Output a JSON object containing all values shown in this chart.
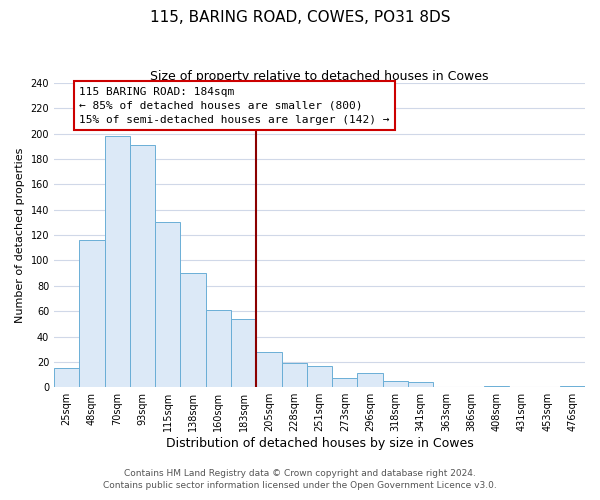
{
  "title": "115, BARING ROAD, COWES, PO31 8DS",
  "subtitle": "Size of property relative to detached houses in Cowes",
  "xlabel": "Distribution of detached houses by size in Cowes",
  "ylabel": "Number of detached properties",
  "bin_labels": [
    "25sqm",
    "48sqm",
    "70sqm",
    "93sqm",
    "115sqm",
    "138sqm",
    "160sqm",
    "183sqm",
    "205sqm",
    "228sqm",
    "251sqm",
    "273sqm",
    "296sqm",
    "318sqm",
    "341sqm",
    "363sqm",
    "386sqm",
    "408sqm",
    "431sqm",
    "453sqm",
    "476sqm"
  ],
  "bar_heights": [
    15,
    116,
    198,
    191,
    130,
    90,
    61,
    54,
    28,
    19,
    17,
    7,
    11,
    5,
    4,
    0,
    0,
    1,
    0,
    0,
    1
  ],
  "bar_color": "#dce9f7",
  "bar_edge_color": "#6aaed6",
  "property_line_color": "#8b0000",
  "annotation_line1": "115 BARING ROAD: 184sqm",
  "annotation_line2": "← 85% of detached houses are smaller (800)",
  "annotation_line3": "15% of semi-detached houses are larger (142) →",
  "annotation_box_color": "white",
  "annotation_box_edge_color": "#cc0000",
  "ylim": [
    0,
    240
  ],
  "yticks": [
    0,
    20,
    40,
    60,
    80,
    100,
    120,
    140,
    160,
    180,
    200,
    220,
    240
  ],
  "footer_line1": "Contains HM Land Registry data © Crown copyright and database right 2024.",
  "footer_line2": "Contains public sector information licensed under the Open Government Licence v3.0.",
  "bg_color": "#ffffff",
  "plot_bg_color": "#ffffff",
  "grid_color": "#d0d8e8",
  "title_fontsize": 11,
  "subtitle_fontsize": 9,
  "xlabel_fontsize": 9,
  "ylabel_fontsize": 8,
  "tick_fontsize": 7,
  "annotation_fontsize": 8,
  "footer_fontsize": 6.5
}
